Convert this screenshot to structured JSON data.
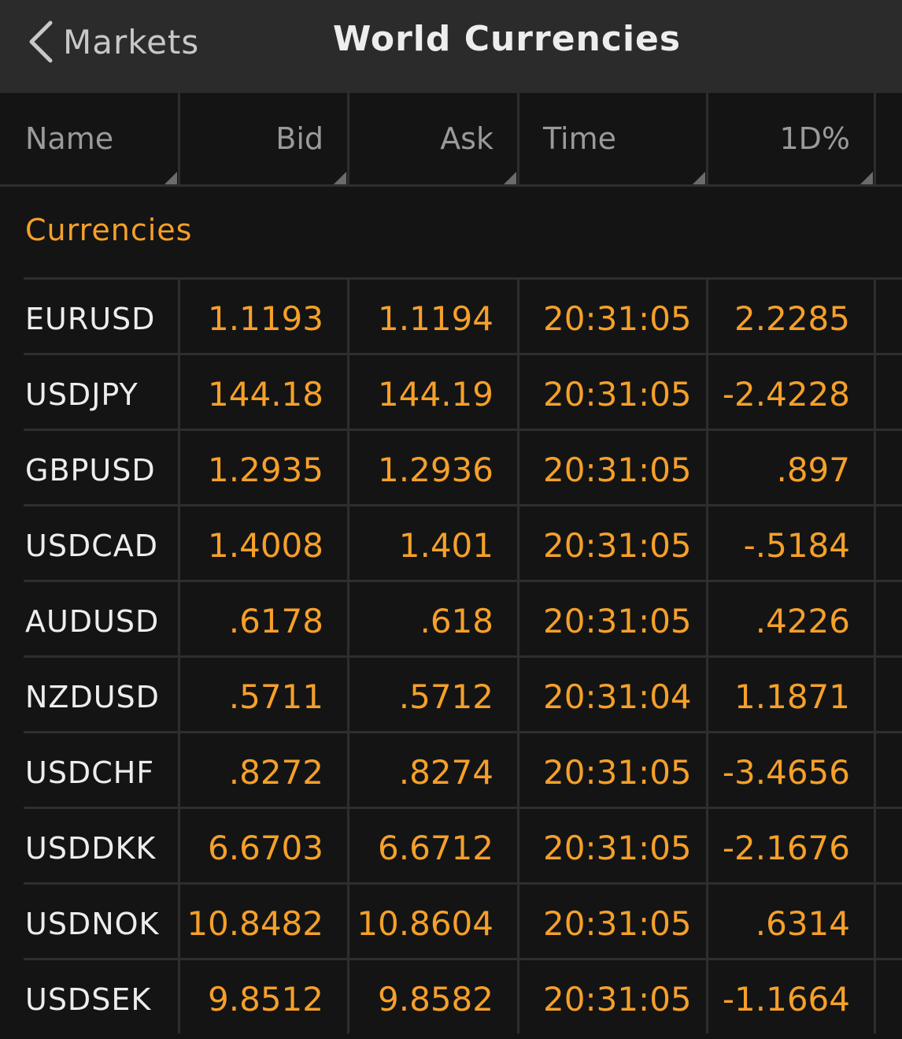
{
  "nav": {
    "back_label": "Markets",
    "title": "World Currencies"
  },
  "columns": [
    "Name",
    "Bid",
    "Ask",
    "Time",
    "1D%"
  ],
  "section": "Currencies",
  "rows": [
    {
      "name": "EURUSD",
      "bid": "1.1193",
      "ask": "1.1194",
      "time": "20:31:05",
      "change": "2.2285"
    },
    {
      "name": "USDJPY",
      "bid": "144.18",
      "ask": "144.19",
      "time": "20:31:05",
      "change": "-2.4228"
    },
    {
      "name": "GBPUSD",
      "bid": "1.2935",
      "ask": "1.2936",
      "time": "20:31:05",
      "change": ".897"
    },
    {
      "name": "USDCAD",
      "bid": "1.4008",
      "ask": "1.401",
      "time": "20:31:05",
      "change": "-.5184"
    },
    {
      "name": "AUDUSD",
      "bid": ".6178",
      "ask": ".618",
      "time": "20:31:05",
      "change": ".4226"
    },
    {
      "name": "NZDUSD",
      "bid": ".5711",
      "ask": ".5712",
      "time": "20:31:04",
      "change": "1.1871"
    },
    {
      "name": "USDCHF",
      "bid": ".8272",
      "ask": ".8274",
      "time": "20:31:05",
      "change": "-3.4656"
    },
    {
      "name": "USDDKK",
      "bid": "6.6703",
      "ask": "6.6712",
      "time": "20:31:05",
      "change": "-2.1676"
    },
    {
      "name": "USDNOK",
      "bid": "10.8482",
      "ask": "10.8604",
      "time": "20:31:05",
      "change": ".6314"
    },
    {
      "name": "USDSEK",
      "bid": "9.8512",
      "ask": "9.8582",
      "time": "20:31:05",
      "change": "-1.1664"
    }
  ],
  "colors": {
    "accent": "#f5a02a",
    "navbar": "#2b2b2b",
    "background": "#141414"
  },
  "icons": {
    "back": "chevron-left-icon"
  }
}
